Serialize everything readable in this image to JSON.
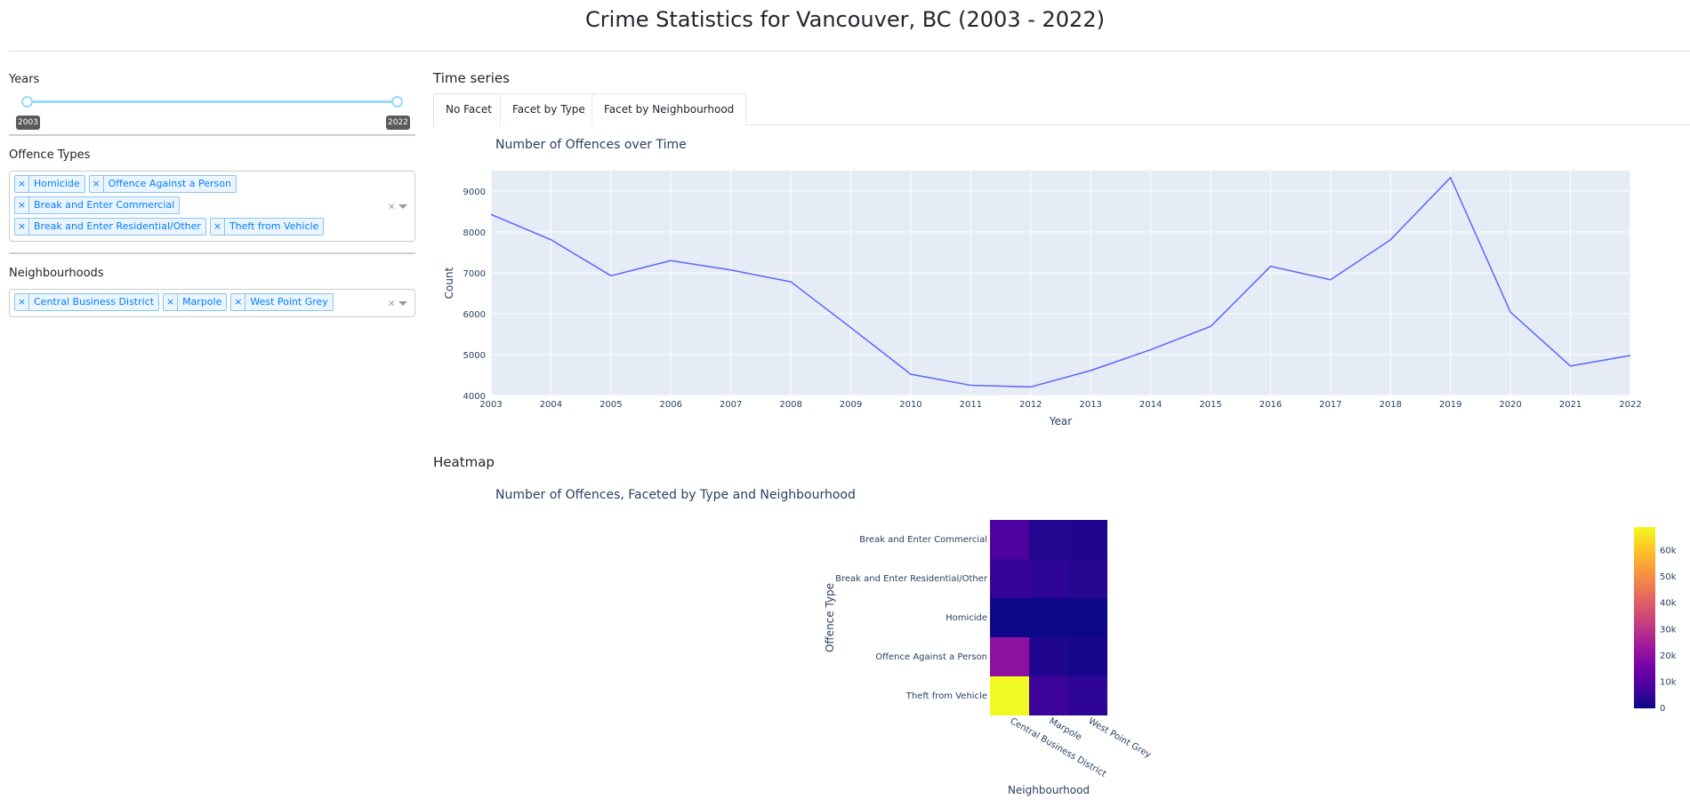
{
  "page": {
    "title": "Crime Statistics for Vancouver, BC (2003 - 2022)"
  },
  "sidebar": {
    "years_label": "Years",
    "years_min": "2003",
    "years_max": "2022",
    "offence_label": "Offence Types",
    "offence_tags": [
      "Homicide",
      "Offence Against a Person",
      "Break and Enter Commercial",
      "Break and Enter Residential/Other",
      "Theft from Vehicle"
    ],
    "neighbourhood_label": "Neighbourhoods",
    "neighbourhood_tags": [
      "Central Business District",
      "Marpole",
      "West Point Grey"
    ],
    "remove_glyph": "×",
    "clear_glyph": "×"
  },
  "main": {
    "timeseries_title": "Time series",
    "tabs": [
      {
        "label": "No Facet",
        "active": true
      },
      {
        "label": "Facet by Type",
        "active": false
      },
      {
        "label": "Facet by Neighbourhood",
        "active": false
      }
    ],
    "heatmap_section_title": "Heatmap"
  },
  "colors": {
    "plot_bg": "#e5ecf6",
    "line": "#636efa",
    "axis_text": "#2a3f5f",
    "tag_text": "#007eff"
  },
  "chart_data": [
    {
      "type": "line",
      "title": "Number of Offences over Time",
      "xlabel": "Year",
      "ylabel": "Count",
      "x": [
        2003,
        2004,
        2005,
        2006,
        2007,
        2008,
        2009,
        2010,
        2011,
        2012,
        2013,
        2014,
        2015,
        2016,
        2017,
        2018,
        2019,
        2020,
        2021,
        2022
      ],
      "y": [
        8430,
        7810,
        6930,
        7300,
        7070,
        6780,
        5660,
        4520,
        4250,
        4210,
        4610,
        5120,
        5690,
        7160,
        6830,
        7810,
        9330,
        6040,
        4720,
        4980
      ],
      "xlim": [
        2003,
        2022
      ],
      "ylim": [
        4000,
        9500
      ],
      "yticks": [
        4000,
        5000,
        6000,
        7000,
        8000,
        9000
      ],
      "grid": true
    },
    {
      "type": "heatmap",
      "title": "Number of Offences, Faceted by Type and Neighbourhood",
      "xlabel": "Neighbourhood",
      "ylabel": "Offence Type",
      "x": [
        "Central Business District",
        "Marpole",
        "West Point Grey"
      ],
      "y": [
        "Break and Enter Commercial",
        "Break and Enter Residential/Other",
        "Homicide",
        "Offence Against a Person",
        "Theft from Vehicle"
      ],
      "z": [
        [
          9000,
          3000,
          2500
        ],
        [
          5500,
          4500,
          3500
        ],
        [
          40,
          20,
          10
        ],
        [
          20500,
          2500,
          1500
        ],
        [
          69000,
          6500,
          4500
        ]
      ],
      "zlim": [
        0,
        69000
      ],
      "colorbar_ticks": [
        0,
        10000,
        20000,
        30000,
        40000,
        50000,
        60000
      ],
      "colorbar_ticktext": [
        "0",
        "10k",
        "20k",
        "30k",
        "40k",
        "50k",
        "60k"
      ],
      "colorscale": [
        "#0d0887",
        "#46039f",
        "#7201a8",
        "#9c179e",
        "#bd3786",
        "#d8576b",
        "#ed7953",
        "#fb9f3a",
        "#fdca26",
        "#f0f921"
      ]
    }
  ]
}
